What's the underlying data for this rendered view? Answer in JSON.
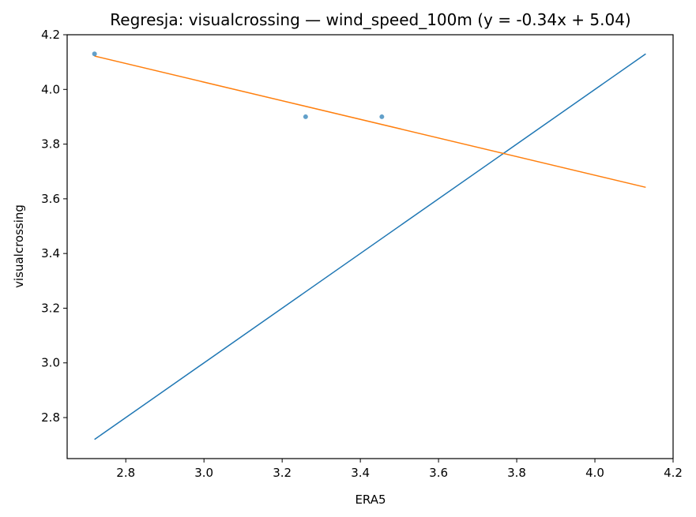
{
  "chart_data": {
    "type": "scatter",
    "title": "Regresja: visualcrossing — wind_speed_100m (y = -0.34x + 5.04)",
    "xlabel": "ERA5",
    "ylabel": "visualcrossing",
    "xlim": [
      2.65,
      4.2
    ],
    "ylim": [
      2.65,
      4.2
    ],
    "xticks": [
      "2.8",
      "3.0",
      "3.2",
      "3.4",
      "3.6",
      "3.8",
      "4.0",
      "4.2"
    ],
    "yticks": [
      "2.8",
      "3.0",
      "3.2",
      "3.4",
      "3.6",
      "3.8",
      "4.0",
      "4.2"
    ],
    "grid": false,
    "points": [
      {
        "x": 2.72,
        "y": 4.13
      },
      {
        "x": 3.26,
        "y": 3.9
      },
      {
        "x": 3.455,
        "y": 3.9
      }
    ],
    "identity_line": {
      "x": [
        2.72,
        4.13
      ],
      "y": [
        2.72,
        4.13
      ]
    },
    "regression_line": {
      "x": [
        2.72,
        4.13
      ],
      "y": [
        4.122,
        3.642
      ],
      "slope": -0.34,
      "intercept": 5.04
    },
    "colors": {
      "points": "#1f77b4",
      "identity": "#1f77b4",
      "regression": "#ff7f0e"
    }
  }
}
